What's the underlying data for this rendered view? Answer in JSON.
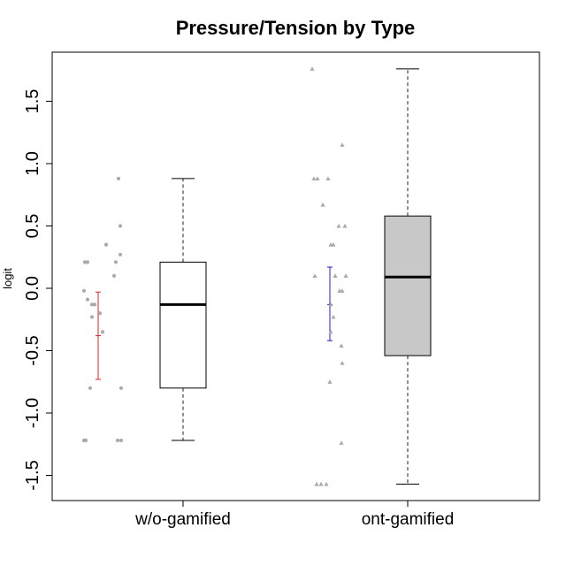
{
  "chart_data": {
    "type": "box",
    "title": "Pressure/Tension by Type",
    "ylabel": "logit",
    "xlabel": "",
    "categories": [
      "w/o-gamified",
      "ont-gamified"
    ],
    "ylim": [
      -1.7,
      1.9
    ],
    "yticks": [
      -1.5,
      -1.0,
      -0.5,
      0.0,
      0.5,
      1.0,
      1.5
    ],
    "ytick_labels": [
      "-1.5",
      "-1.0",
      "-0.5",
      "0.0",
      "0.5",
      "1.0",
      "1.5"
    ],
    "grid": false,
    "boxes": [
      {
        "category": "w/o-gamified",
        "min": -1.22,
        "q1": -0.8,
        "median": -0.13,
        "q3": 0.21,
        "max": 0.88,
        "fill": "#ffffff"
      },
      {
        "category": "ont-gamified",
        "min": -1.57,
        "q1": -0.54,
        "median": 0.09,
        "q3": 0.58,
        "max": 1.76,
        "fill": "#c8c8c8"
      }
    ],
    "mean_ci": [
      {
        "category": "w/o-gamified",
        "mean": -0.38,
        "lower": -0.73,
        "upper": -0.03,
        "color": "#d62728"
      },
      {
        "category": "ont-gamified",
        "mean": -0.13,
        "lower": -0.42,
        "upper": 0.17,
        "color": "#1f1fbf"
      }
    ],
    "points": [
      {
        "category": "w/o-gamified",
        "marker": "circle",
        "color": "#aaaaaa",
        "values": [
          {
            "dx": -25,
            "y": -1.22
          },
          {
            "dx": -23,
            "y": -1.22
          },
          {
            "dx": -24,
            "y": 0.21
          },
          {
            "dx": -21,
            "y": 0.21
          },
          {
            "dx": -25,
            "y": -0.02
          },
          {
            "dx": -21,
            "y": -0.09
          },
          {
            "dx": -16,
            "y": -0.13
          },
          {
            "dx": -13,
            "y": -0.13
          },
          {
            "dx": -16,
            "y": -0.23
          },
          {
            "dx": -18,
            "y": -0.8
          },
          {
            "dx": -4,
            "y": -0.35
          },
          {
            "dx": 0,
            "y": 0.35
          },
          {
            "dx": 14,
            "y": 0.88
          },
          {
            "dx": 16,
            "y": 0.5
          },
          {
            "dx": 16,
            "y": 0.27
          },
          {
            "dx": 11,
            "y": 0.21
          },
          {
            "dx": 9,
            "y": 0.1
          },
          {
            "dx": 17,
            "y": -0.8
          },
          {
            "dx": 13,
            "y": -1.22
          },
          {
            "dx": 17,
            "y": -1.22
          },
          {
            "dx": -7,
            "y": -0.2
          }
        ]
      },
      {
        "category": "ont-gamified",
        "marker": "triangle",
        "color": "#aaaaaa",
        "values": [
          {
            "dx": -21,
            "y": 1.76
          },
          {
            "dx": -19,
            "y": 0.88
          },
          {
            "dx": -15,
            "y": 0.88
          },
          {
            "dx": -3,
            "y": 0.88
          },
          {
            "dx": -9,
            "y": 0.67
          },
          {
            "dx": 13,
            "y": 1.15
          },
          {
            "dx": 9,
            "y": 0.5
          },
          {
            "dx": 16,
            "y": 0.5
          },
          {
            "dx": 0,
            "y": 0.35
          },
          {
            "dx": 3,
            "y": 0.35
          },
          {
            "dx": -18,
            "y": 0.1
          },
          {
            "dx": 5,
            "y": 0.1
          },
          {
            "dx": 17,
            "y": 0.1
          },
          {
            "dx": 10,
            "y": -0.02
          },
          {
            "dx": 13,
            "y": -0.02
          },
          {
            "dx": 0,
            "y": -0.13
          },
          {
            "dx": 3,
            "y": -0.23
          },
          {
            "dx": 0,
            "y": -0.35
          },
          {
            "dx": 12,
            "y": -0.46
          },
          {
            "dx": 13,
            "y": -0.6
          },
          {
            "dx": -1,
            "y": -0.75
          },
          {
            "dx": 12,
            "y": -1.24
          },
          {
            "dx": -16,
            "y": -1.57
          },
          {
            "dx": -11,
            "y": -1.57
          },
          {
            "dx": -5,
            "y": -1.57
          }
        ]
      }
    ]
  }
}
